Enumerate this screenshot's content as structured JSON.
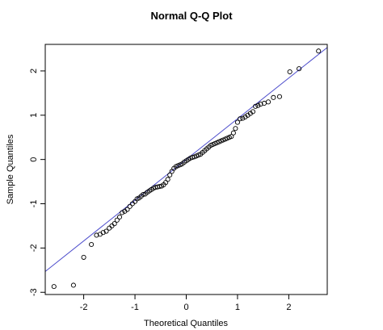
{
  "chart_data": {
    "type": "scatter",
    "title": "Normal Q-Q Plot",
    "xlabel": "Theoretical Quantiles",
    "ylabel": "Sample Quantiles",
    "xlim": [
      -2.75,
      2.75
    ],
    "ylim": [
      -3.05,
      2.6
    ],
    "x_ticks": [
      -2,
      -1,
      0,
      1,
      2
    ],
    "y_ticks": [
      -3,
      -2,
      -1,
      0,
      1,
      2
    ],
    "x_tick_labels": [
      "-2",
      "-1",
      "0",
      "1",
      "2"
    ],
    "y_tick_labels": [
      "-3",
      "-2",
      "-1",
      "0",
      "1",
      "2"
    ],
    "grid": false,
    "reference_line": {
      "slope": 0.92,
      "intercept": 0.0,
      "color": "#4d4dcc"
    },
    "point_style": {
      "shape": "open-circle",
      "color": "#000000"
    },
    "points": {
      "x": [
        -2.58,
        -2.2,
        -2.0,
        -1.85,
        -1.75,
        -1.68,
        -1.62,
        -1.56,
        -1.5,
        -1.45,
        -1.4,
        -1.35,
        -1.3,
        -1.25,
        -1.2,
        -1.15,
        -1.1,
        -1.05,
        -1.0,
        -0.96,
        -0.92,
        -0.88,
        -0.84,
        -0.8,
        -0.76,
        -0.72,
        -0.68,
        -0.64,
        -0.6,
        -0.56,
        -0.52,
        -0.48,
        -0.44,
        -0.4,
        -0.36,
        -0.32,
        -0.28,
        -0.24,
        -0.2,
        -0.16,
        -0.12,
        -0.08,
        -0.04,
        0.0,
        0.04,
        0.08,
        0.12,
        0.16,
        0.2,
        0.24,
        0.28,
        0.32,
        0.36,
        0.4,
        0.44,
        0.48,
        0.52,
        0.56,
        0.6,
        0.64,
        0.68,
        0.72,
        0.76,
        0.8,
        0.84,
        0.88,
        0.92,
        0.96,
        1.0,
        1.05,
        1.1,
        1.15,
        1.2,
        1.25,
        1.3,
        1.35,
        1.4,
        1.45,
        1.52,
        1.6,
        1.7,
        1.82,
        2.02,
        2.2,
        2.58
      ],
      "y": [
        -2.87,
        -2.84,
        -2.21,
        -1.92,
        -1.71,
        -1.69,
        -1.65,
        -1.62,
        -1.55,
        -1.5,
        -1.45,
        -1.37,
        -1.3,
        -1.2,
        -1.17,
        -1.13,
        -1.06,
        -1.0,
        -0.95,
        -0.89,
        -0.87,
        -0.83,
        -0.79,
        -0.78,
        -0.74,
        -0.71,
        -0.68,
        -0.65,
        -0.63,
        -0.62,
        -0.61,
        -0.6,
        -0.57,
        -0.52,
        -0.45,
        -0.35,
        -0.27,
        -0.2,
        -0.16,
        -0.14,
        -0.12,
        -0.1,
        -0.06,
        -0.03,
        0.0,
        0.03,
        0.05,
        0.06,
        0.08,
        0.1,
        0.12,
        0.16,
        0.2,
        0.24,
        0.28,
        0.32,
        0.34,
        0.36,
        0.38,
        0.4,
        0.42,
        0.44,
        0.46,
        0.48,
        0.5,
        0.52,
        0.6,
        0.7,
        0.84,
        0.92,
        0.93,
        0.96,
        1.0,
        1.04,
        1.08,
        1.2,
        1.22,
        1.25,
        1.27,
        1.3,
        1.4,
        1.42,
        1.98,
        2.05,
        2.45
      ]
    }
  }
}
